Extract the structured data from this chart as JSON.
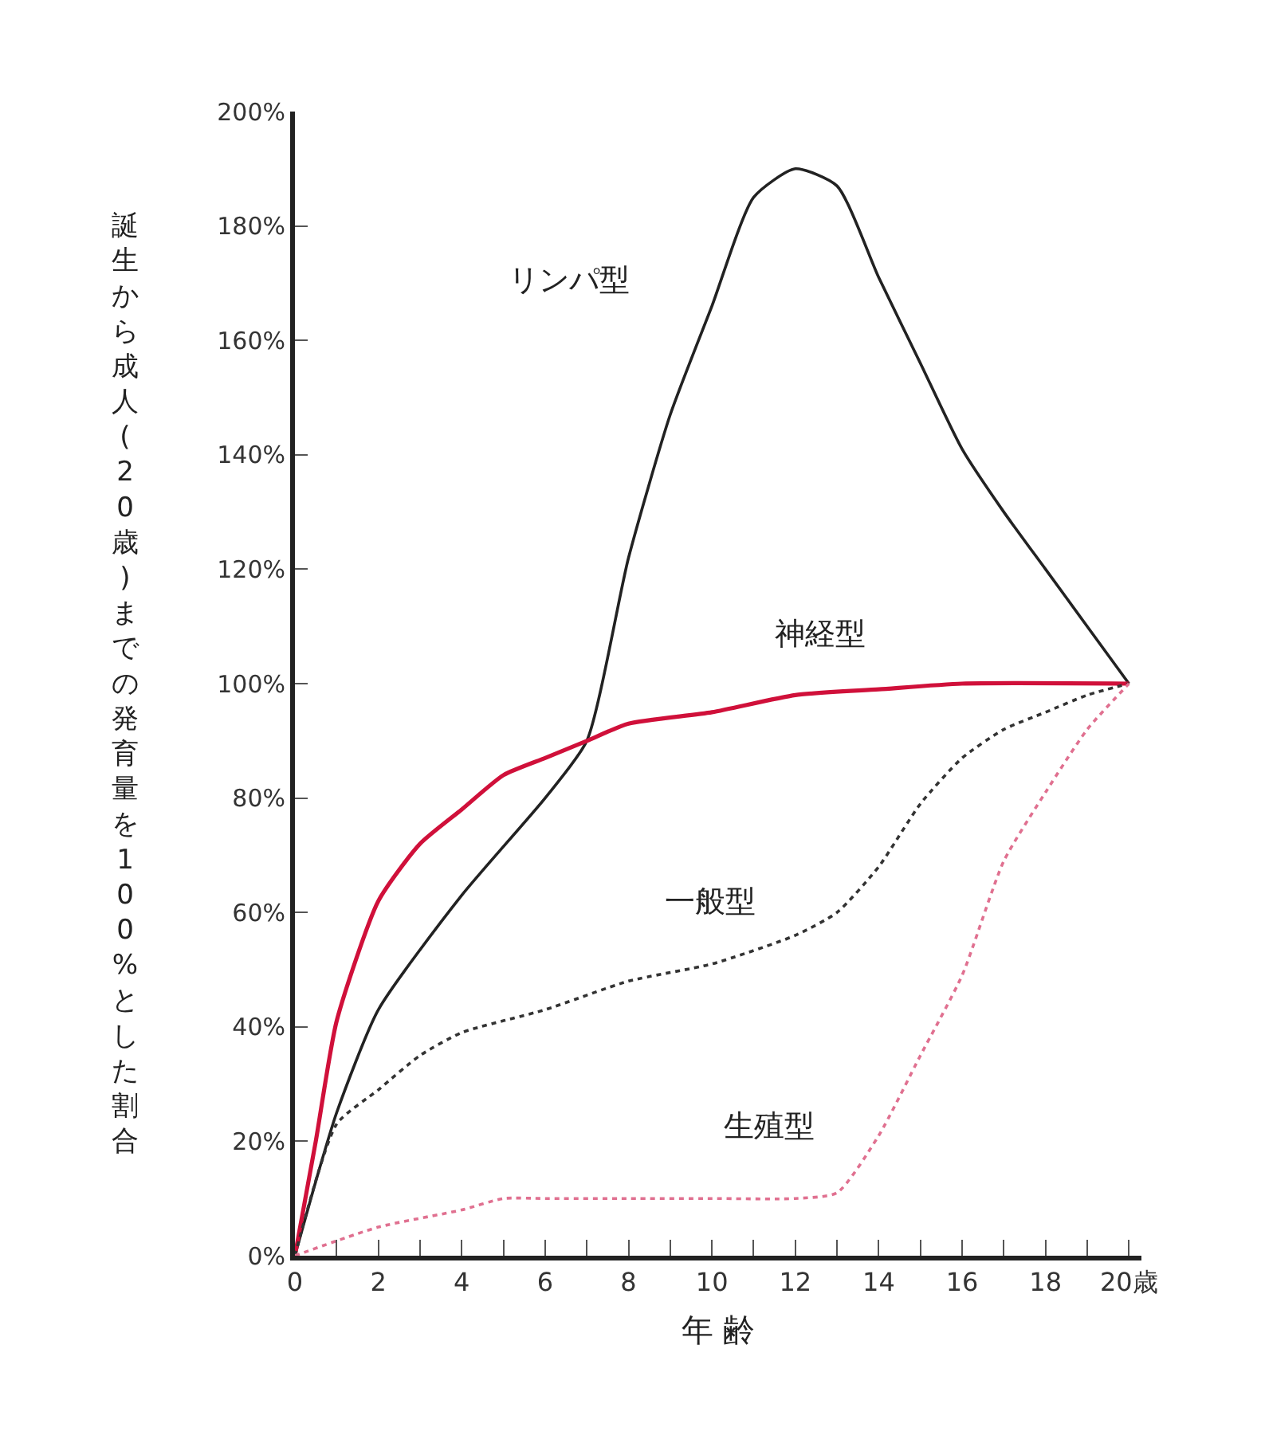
{
  "chart_data": {
    "type": "line",
    "xlabel": "年 齢",
    "ylabel": "誕生から成人(20歳)までの発育量を100%とした割合",
    "xlim": [
      0,
      20.3
    ],
    "ylim": [
      0,
      200
    ],
    "xticks": [
      0,
      {
        "value": 1,
        "label": null
      },
      2,
      {
        "value": 3,
        "label": null
      },
      4,
      {
        "value": 5,
        "label": null
      },
      6,
      {
        "value": 7,
        "label": null
      },
      8,
      {
        "value": 9,
        "label": null
      },
      10,
      {
        "value": 11,
        "label": null
      },
      12,
      {
        "value": 13,
        "label": null
      },
      14,
      {
        "value": 15,
        "label": null
      },
      16,
      {
        "value": 17,
        "label": null
      },
      18,
      {
        "value": 19,
        "label": null
      },
      {
        "value": 20,
        "label": "20歳"
      }
    ],
    "yticks": [
      {
        "value": 0,
        "label": "0%"
      },
      {
        "value": 20,
        "label": "20%"
      },
      {
        "value": 40,
        "label": "40%"
      },
      {
        "value": 60,
        "label": "60%"
      },
      {
        "value": 80,
        "label": "80%"
      },
      {
        "value": 100,
        "label": "100%"
      },
      {
        "value": 120,
        "label": "120%"
      },
      {
        "value": 140,
        "label": "140%"
      },
      {
        "value": 160,
        "label": "160%"
      },
      {
        "value": 180,
        "label": "180%"
      },
      {
        "value": 200,
        "label": "200%"
      }
    ],
    "grid": false,
    "legend": false,
    "marker": "none",
    "series": [
      {
        "name": "リンパ型",
        "color": "#222222",
        "line_style": "solid",
        "x": [
          0,
          0.5,
          1,
          2,
          4,
          6,
          7,
          8,
          9,
          10,
          11,
          12,
          13,
          14,
          15,
          16,
          17,
          18,
          19,
          20
        ],
        "values": [
          0,
          13,
          25,
          43,
          63,
          80,
          90,
          122,
          147,
          166,
          185,
          190,
          187,
          171,
          156,
          141,
          130,
          120,
          110,
          100
        ]
      },
      {
        "name": "神経型",
        "color": "#d0103a",
        "line_style": "solid",
        "x": [
          0,
          0.5,
          1,
          2,
          3,
          4,
          5,
          6,
          7,
          8,
          10,
          12,
          14,
          16,
          20
        ],
        "values": [
          0,
          20,
          41,
          62,
          72,
          78,
          84,
          87,
          90,
          93,
          95,
          98,
          99,
          100,
          100
        ]
      },
      {
        "name": "一般型",
        "color": "#333333",
        "line_style": "dotted",
        "x": [
          0,
          1,
          2,
          3,
          4,
          6,
          8,
          10,
          12,
          13,
          14,
          15,
          16,
          17,
          18,
          19,
          20
        ],
        "values": [
          0,
          23,
          29,
          35,
          39,
          43,
          48,
          51,
          56,
          60,
          68,
          79,
          87,
          92,
          95,
          98,
          100
        ]
      },
      {
        "name": "生殖型",
        "color": "#e07090",
        "line_style": "dotted",
        "x": [
          0,
          2,
          4,
          5,
          6,
          8,
          10,
          12,
          13,
          14,
          15,
          16,
          17,
          18,
          19,
          20
        ],
        "values": [
          0,
          5,
          8,
          10,
          10,
          10,
          10,
          10,
          11,
          21,
          35,
          49,
          69,
          81,
          92,
          100
        ]
      }
    ]
  }
}
